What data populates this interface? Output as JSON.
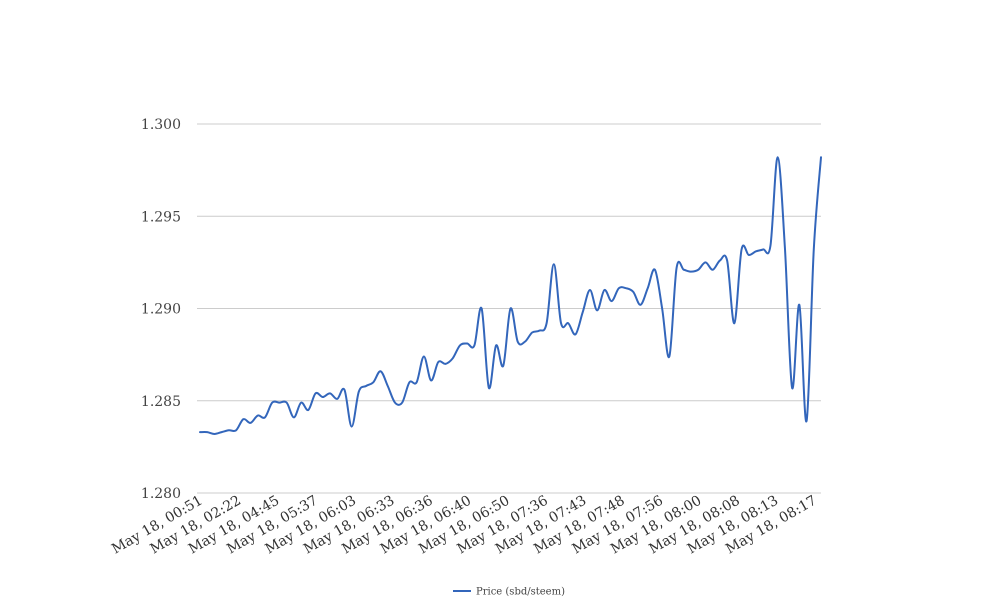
{
  "chart_data": {
    "type": "line",
    "title": "",
    "xlabel": "",
    "ylabel": "",
    "ylim": [
      1.28,
      1.3
    ],
    "yticks": [
      "1.280",
      "1.285",
      "1.290",
      "1.295",
      "1.300"
    ],
    "grid": true,
    "legend_position": "bottom-center",
    "line_color": "#3366bb",
    "grid_color": "#cccccc",
    "x_tick_labels": [
      "May 18, 00:51",
      "May 18, 02:22",
      "May 18, 04:45",
      "May 18, 05:37",
      "May 18, 06:03",
      "May 18, 06:33",
      "May 18, 06:36",
      "May 18, 06:40",
      "May 18, 06:50",
      "May 18, 07:36",
      "May 18, 07:43",
      "May 18, 07:48",
      "May 18, 07:56",
      "May 18, 08:00",
      "May 18, 08:08",
      "May 18, 08:13",
      "May 18, 08:17"
    ],
    "series": [
      {
        "name": "Price (sbd/steem)",
        "values": [
          1.2833,
          1.2833,
          1.2832,
          1.2833,
          1.2834,
          1.2834,
          1.284,
          1.2838,
          1.2842,
          1.2841,
          1.2849,
          1.2849,
          1.2849,
          1.2841,
          1.2849,
          1.2845,
          1.2854,
          1.2852,
          1.2854,
          1.2851,
          1.2856,
          1.2836,
          1.2855,
          1.2858,
          1.286,
          1.2866,
          1.2858,
          1.2849,
          1.2849,
          1.286,
          1.286,
          1.2874,
          1.2861,
          1.2871,
          1.287,
          1.2873,
          1.288,
          1.2881,
          1.288,
          1.29,
          1.2857,
          1.288,
          1.2869,
          1.29,
          1.2882,
          1.2882,
          1.2887,
          1.2888,
          1.2892,
          1.2924,
          1.2892,
          1.2892,
          1.2886,
          1.2898,
          1.291,
          1.2899,
          1.291,
          1.2904,
          1.2911,
          1.2911,
          1.2909,
          1.2902,
          1.2911,
          1.2921,
          1.29,
          1.2874,
          1.2922,
          1.2921,
          1.292,
          1.2921,
          1.2925,
          1.2921,
          1.2926,
          1.2926,
          1.2892,
          1.2932,
          1.2929,
          1.2931,
          1.2932,
          1.2934,
          1.2982,
          1.2933,
          1.2857,
          1.2902,
          1.2839,
          1.2932,
          1.2982
        ]
      }
    ]
  }
}
